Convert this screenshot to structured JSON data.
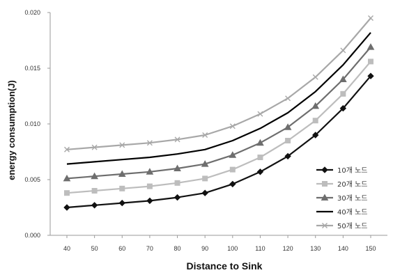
{
  "chart_data": {
    "type": "line",
    "xlabel": "Distance to Sink",
    "ylabel": "energy consumption(J)",
    "x": [
      40,
      50,
      60,
      70,
      80,
      90,
      100,
      110,
      120,
      130,
      140,
      150
    ],
    "x_ticks": [
      "40",
      "50",
      "60",
      "70",
      "80",
      "90",
      "100",
      "110",
      "120",
      "130",
      "140",
      "150"
    ],
    "ylim": [
      0,
      0.02
    ],
    "y_ticks": [
      "0.000",
      "0.005",
      "0.010",
      "0.015",
      "0.020"
    ],
    "y_tick_values": [
      0,
      0.005,
      0.01,
      0.015,
      0.02
    ],
    "grid": false,
    "legend_position": "right",
    "series": [
      {
        "name": "10개 노드",
        "color": "#111111",
        "marker": "diamond",
        "values": [
          0.0025,
          0.0027,
          0.0029,
          0.0031,
          0.0034,
          0.0038,
          0.0046,
          0.0057,
          0.0071,
          0.009,
          0.0114,
          0.0143
        ]
      },
      {
        "name": "20개 노드",
        "color": "#bdbdbd",
        "marker": "square",
        "values": [
          0.0038,
          0.004,
          0.0042,
          0.0044,
          0.0047,
          0.0051,
          0.0059,
          0.007,
          0.0085,
          0.0103,
          0.0127,
          0.0156
        ]
      },
      {
        "name": "30개 노드",
        "color": "#6e6e6e",
        "marker": "triangle",
        "values": [
          0.0051,
          0.0053,
          0.0055,
          0.0057,
          0.006,
          0.0064,
          0.0072,
          0.0083,
          0.0097,
          0.0116,
          0.014,
          0.0169
        ]
      },
      {
        "name": "40개 노드",
        "color": "#000000",
        "marker": "none",
        "values": [
          0.0064,
          0.0066,
          0.0068,
          0.007,
          0.0073,
          0.0077,
          0.0085,
          0.0096,
          0.011,
          0.0129,
          0.0153,
          0.0182
        ]
      },
      {
        "name": "50개 노드",
        "color": "#a8a8a8",
        "marker": "x",
        "values": [
          0.0077,
          0.0079,
          0.0081,
          0.0083,
          0.0086,
          0.009,
          0.0098,
          0.0109,
          0.0123,
          0.0142,
          0.0166,
          0.0195
        ]
      }
    ]
  }
}
